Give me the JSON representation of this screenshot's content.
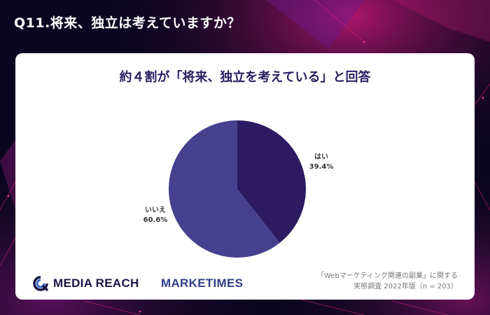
{
  "question": "Q11.将来、独立は考えていますか？",
  "headline": "約４割が「将来、独立を考えている」と回答",
  "chart_data": {
    "type": "pie",
    "slices": [
      {
        "label": "はい",
        "value": 39.4,
        "value_label": "39.4%",
        "color": "#2c1a63"
      },
      {
        "label": "いいえ",
        "value": 60.6,
        "value_label": "60.6%",
        "color": "#46408f"
      }
    ],
    "start_angle_deg": 0,
    "direction": "clockwise"
  },
  "logos": {
    "media_reach": "MEDIA REACH",
    "marketimes": "MARKETIMES"
  },
  "source": {
    "line1": "「Webマーケティング関連の副業」に関する",
    "line2": "実態調査 2022年版（n = 203）"
  },
  "colors": {
    "background": "#0b0620",
    "accent_magenta": "#e0207a",
    "headline": "#2b1f63"
  }
}
